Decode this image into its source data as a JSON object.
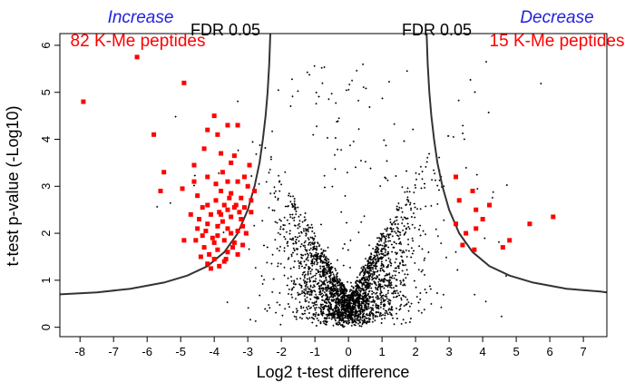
{
  "chart_data": {
    "type": "scatter",
    "title": "",
    "xlabel": "Log2 t-test difference",
    "ylabel": "t-test p-value (-Log10)",
    "xlim": [
      -8.6,
      7.7
    ],
    "ylim": [
      -0.2,
      6.25
    ],
    "x_ticks": [
      -8,
      -7,
      -6,
      -5,
      -4,
      -3,
      -2,
      -1,
      0,
      1,
      2,
      3,
      4,
      5,
      6,
      7
    ],
    "y_ticks": [
      0,
      1,
      2,
      3,
      4,
      5,
      6
    ],
    "grid": false,
    "annotations": {
      "left_heading": "Increase",
      "left_count": "82 K-Me peptides",
      "right_heading": "Decrease",
      "right_count": "15 K-Me peptides",
      "left_threshold": "FDR 0.05",
      "right_threshold": "FDR 0.05"
    },
    "threshold_curve": {
      "name": "FDR 0.05",
      "left": [
        [
          -8.6,
          0.7
        ],
        [
          -7.5,
          0.74
        ],
        [
          -6.5,
          0.82
        ],
        [
          -5.5,
          0.95
        ],
        [
          -4.8,
          1.1
        ],
        [
          -4.2,
          1.3
        ],
        [
          -3.7,
          1.6
        ],
        [
          -3.3,
          2.0
        ],
        [
          -3.0,
          2.5
        ],
        [
          -2.8,
          3.0
        ],
        [
          -2.65,
          3.5
        ],
        [
          -2.55,
          4.0
        ],
        [
          -2.47,
          4.5
        ],
        [
          -2.41,
          5.0
        ],
        [
          -2.36,
          5.6
        ],
        [
          -2.33,
          6.25
        ]
      ],
      "right": [
        [
          2.33,
          6.25
        ],
        [
          2.36,
          5.6
        ],
        [
          2.41,
          5.0
        ],
        [
          2.47,
          4.5
        ],
        [
          2.55,
          4.0
        ],
        [
          2.65,
          3.5
        ],
        [
          2.8,
          3.0
        ],
        [
          3.0,
          2.5
        ],
        [
          3.3,
          2.0
        ],
        [
          3.7,
          1.6
        ],
        [
          4.2,
          1.3
        ],
        [
          4.8,
          1.1
        ],
        [
          5.5,
          0.95
        ],
        [
          6.5,
          0.82
        ],
        [
          7.5,
          0.76
        ],
        [
          7.7,
          0.74
        ]
      ]
    },
    "series": [
      {
        "color": "#ff0000",
        "marker": "square",
        "points": [
          [
            -7.9,
            4.8
          ],
          [
            -6.3,
            5.75
          ],
          [
            -4.9,
            5.2
          ],
          [
            -5.8,
            4.1
          ],
          [
            -5.5,
            3.3
          ],
          [
            -5.6,
            2.9
          ],
          [
            -4.95,
            2.95
          ],
          [
            -4.6,
            3.45
          ],
          [
            -4.6,
            3.1
          ],
          [
            -4.5,
            2.8
          ],
          [
            -4.2,
            2.6
          ],
          [
            -4.7,
            2.4
          ],
          [
            -4.5,
            2.1
          ],
          [
            -4.9,
            1.85
          ],
          [
            -4.0,
            1.8
          ],
          [
            -4.0,
            4.5
          ],
          [
            -4.2,
            4.2
          ],
          [
            -3.9,
            4.1
          ],
          [
            -3.6,
            4.3
          ],
          [
            -3.3,
            4.3
          ],
          [
            -3.8,
            3.7
          ],
          [
            -3.5,
            3.5
          ],
          [
            -4.2,
            3.2
          ],
          [
            -3.6,
            3.1
          ],
          [
            -3.3,
            3.1
          ],
          [
            -3.1,
            3.2
          ],
          [
            -2.95,
            3.45
          ],
          [
            -2.8,
            2.9
          ],
          [
            -3.8,
            2.9
          ],
          [
            -3.5,
            2.85
          ],
          [
            -3.2,
            2.75
          ],
          [
            -2.9,
            2.7
          ],
          [
            -3.7,
            2.6
          ],
          [
            -3.4,
            2.55
          ],
          [
            -3.1,
            2.55
          ],
          [
            -2.9,
            2.45
          ],
          [
            -4.1,
            2.4
          ],
          [
            -3.8,
            2.4
          ],
          [
            -3.5,
            2.35
          ],
          [
            -3.2,
            2.3
          ],
          [
            -4.2,
            2.2
          ],
          [
            -3.9,
            2.15
          ],
          [
            -3.6,
            2.1
          ],
          [
            -3.3,
            2.05
          ],
          [
            -3.05,
            2.0
          ],
          [
            -4.35,
            1.95
          ],
          [
            -4.05,
            1.9
          ],
          [
            -3.7,
            1.85
          ],
          [
            -3.4,
            1.8
          ],
          [
            -3.15,
            1.75
          ],
          [
            -4.3,
            1.7
          ],
          [
            -3.9,
            1.65
          ],
          [
            -3.6,
            1.6
          ],
          [
            -3.3,
            1.55
          ],
          [
            -4.4,
            1.5
          ],
          [
            -4.0,
            1.45
          ],
          [
            -3.7,
            1.4
          ],
          [
            -4.2,
            1.35
          ],
          [
            -3.85,
            1.3
          ],
          [
            -4.1,
            1.25
          ],
          [
            -3.5,
            2.0
          ],
          [
            -3.95,
            2.7
          ],
          [
            -4.35,
            2.55
          ],
          [
            -3.0,
            3.0
          ],
          [
            -3.75,
            3.3
          ],
          [
            -4.3,
            3.8
          ],
          [
            -3.4,
            3.65
          ],
          [
            -4.45,
            2.3
          ],
          [
            -3.25,
            2.45
          ],
          [
            -3.6,
            2.5
          ],
          [
            -3.9,
            1.95
          ],
          [
            -3.45,
            1.7
          ],
          [
            -4.15,
            1.55
          ],
          [
            -3.75,
            2.25
          ],
          [
            -4.55,
            1.85
          ],
          [
            -3.15,
            2.15
          ],
          [
            -3.55,
            2.75
          ],
          [
            -3.95,
            3.05
          ],
          [
            -3.65,
            1.45
          ],
          [
            -4.25,
            2.05
          ],
          [
            -3.35,
            2.6
          ],
          [
            -3.85,
            2.45
          ],
          [
            3.2,
            3.2
          ],
          [
            3.7,
            2.9
          ],
          [
            3.8,
            2.5
          ],
          [
            3.3,
            2.7
          ],
          [
            4.2,
            2.6
          ],
          [
            4.0,
            2.3
          ],
          [
            3.2,
            2.2
          ],
          [
            3.5,
            2.0
          ],
          [
            3.8,
            2.1
          ],
          [
            4.6,
            1.7
          ],
          [
            4.8,
            1.85
          ],
          [
            5.4,
            2.2
          ],
          [
            6.1,
            2.35
          ],
          [
            3.4,
            1.75
          ],
          [
            3.75,
            1.65
          ]
        ]
      }
    ]
  }
}
